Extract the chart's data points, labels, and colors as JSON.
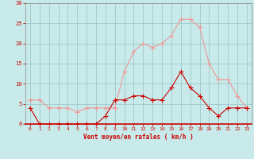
{
  "hours": [
    0,
    1,
    2,
    3,
    4,
    5,
    6,
    7,
    8,
    9,
    10,
    11,
    12,
    13,
    14,
    15,
    16,
    17,
    18,
    19,
    20,
    21,
    22,
    23
  ],
  "wind_avg": [
    4,
    0,
    0,
    0,
    0,
    0,
    0,
    0,
    2,
    6,
    6,
    7,
    7,
    6,
    6,
    9,
    13,
    9,
    7,
    4,
    2,
    4,
    4,
    4
  ],
  "wind_gust": [
    6,
    6,
    4,
    4,
    4,
    3,
    4,
    4,
    4,
    4,
    13,
    18,
    20,
    19,
    20,
    22,
    26,
    26,
    24,
    15,
    11,
    11,
    7,
    4
  ],
  "line_avg_color": "#cc0000",
  "line_gust_color": "#ee9999",
  "bg_color": "#c8eaea",
  "grid_color": "#a0c8c8",
  "xlabel": "Vent moyen/en rafales ( km/h )",
  "xlabel_color": "#cc0000",
  "tick_color": "#cc0000",
  "ylim": [
    0,
    30
  ],
  "yticks": [
    0,
    5,
    10,
    15,
    20,
    25,
    30
  ],
  "spine_color": "#888888"
}
